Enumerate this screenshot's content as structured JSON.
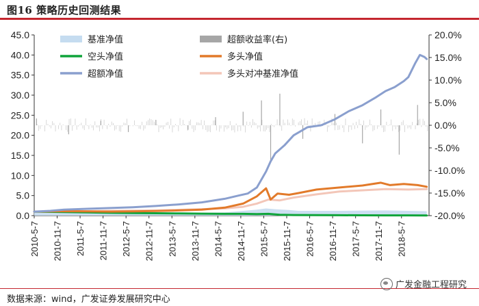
{
  "figure": {
    "title": "图16  策略历史回测结果",
    "source": "数据来源：wind，广发证券发展研究中心",
    "watermark": "广发金融工程研究"
  },
  "chart_data": {
    "type": "line",
    "title": "",
    "left_axis": {
      "ylim": [
        0,
        45
      ],
      "ticks": [
        "0.0",
        "5.0",
        "10.0",
        "15.0",
        "20.0",
        "25.0",
        "30.0",
        "35.0",
        "40.0",
        "45.0"
      ]
    },
    "right_axis": {
      "ylim": [
        -20,
        20
      ],
      "ticks": [
        "-20.0%",
        "-15.0%",
        "-10.0%",
        "-5.0%",
        "0.0%",
        "5.0%",
        "10.0%",
        "15.0%",
        "20.0%"
      ]
    },
    "x_tick_labels": [
      "2010-5-7",
      "2010-11-7",
      "2011-5-7",
      "2011-11-7",
      "2012-5-7",
      "2012-11-7",
      "2013-5-7",
      "2013-11-7",
      "2014-5-7",
      "2014-11-7",
      "2015-5-7",
      "2015-11-7",
      "2016-5-7",
      "2016-11-7",
      "2017-5-7",
      "2017-11-7",
      "2018-5-7"
    ],
    "x_range": [
      2010.35,
      2018.95
    ],
    "legend_placement": "top, two columns",
    "series": [
      {
        "name": "基准净值",
        "axis": "left",
        "style": "area",
        "color": "#c5dcf0",
        "x": [
          2010.35,
          2011.0,
          2011.5,
          2012.0,
          2012.5,
          2013.0,
          2013.5,
          2014.0,
          2014.5,
          2014.9,
          2015.2,
          2015.4,
          2015.6,
          2015.9,
          2016.1,
          2016.5,
          2017.0,
          2017.5,
          2018.0,
          2018.5,
          2018.9
        ],
        "values": [
          1.0,
          1.0,
          0.9,
          0.8,
          0.8,
          0.8,
          0.8,
          0.75,
          0.8,
          1.2,
          1.5,
          1.8,
          1.6,
          1.4,
          1.2,
          1.2,
          1.2,
          1.25,
          1.3,
          1.2,
          1.1
        ]
      },
      {
        "name": "超额收益率(右)",
        "axis": "right",
        "style": "bars",
        "color": "#a6a6a6",
        "x": [
          2010.4,
          2011.1,
          2011.8,
          2012.4,
          2013.0,
          2013.7,
          2014.3,
          2014.9,
          2015.3,
          2015.5,
          2015.7,
          2016.2,
          2016.9,
          2017.5,
          2017.9,
          2018.3,
          2018.7
        ],
        "values": [
          1.5,
          -2.0,
          1.0,
          -1.5,
          1.2,
          -1.0,
          1.8,
          3.0,
          5.5,
          -8.0,
          7.0,
          -3.0,
          2.5,
          -4.0,
          3.5,
          -6.5,
          4.5
        ]
      },
      {
        "name": "空头净值",
        "axis": "left",
        "style": "line",
        "color": "#0fa43a",
        "x": [
          2010.35,
          2011.0,
          2011.5,
          2012.0,
          2012.5,
          2013.0,
          2013.5,
          2014.0,
          2014.5,
          2014.9,
          2015.2,
          2015.45,
          2015.7,
          2016.0,
          2016.5,
          2017.0,
          2017.5,
          2018.0,
          2018.5,
          2018.9
        ],
        "values": [
          1.0,
          0.9,
          0.8,
          0.7,
          0.65,
          0.6,
          0.55,
          0.5,
          0.45,
          0.45,
          0.4,
          0.45,
          0.2,
          0.15,
          0.12,
          0.1,
          0.08,
          0.07,
          0.06,
          0.05
        ]
      },
      {
        "name": "多头净值",
        "axis": "left",
        "style": "line",
        "color": "#e27a2a",
        "x": [
          2010.35,
          2011.0,
          2011.5,
          2012.0,
          2012.5,
          2013.0,
          2013.5,
          2014.0,
          2014.5,
          2014.9,
          2015.2,
          2015.4,
          2015.5,
          2015.65,
          2015.9,
          2016.1,
          2016.5,
          2017.0,
          2017.5,
          2017.9,
          2018.1,
          2018.4,
          2018.7,
          2018.9
        ],
        "values": [
          1.0,
          1.1,
          1.05,
          1.0,
          1.05,
          1.15,
          1.3,
          1.5,
          2.0,
          3.0,
          4.8,
          6.8,
          4.0,
          5.5,
          5.2,
          5.6,
          6.5,
          7.0,
          7.5,
          8.2,
          7.6,
          7.9,
          7.6,
          7.2
        ]
      },
      {
        "name": "超额净值",
        "axis": "left",
        "style": "line",
        "color": "#8a9fce",
        "x": [
          2010.35,
          2010.7,
          2011.0,
          2011.5,
          2012.0,
          2012.5,
          2013.0,
          2013.5,
          2014.0,
          2014.5,
          2014.8,
          2015.0,
          2015.2,
          2015.4,
          2015.5,
          2015.6,
          2015.8,
          2016.0,
          2016.3,
          2016.6,
          2016.9,
          2017.2,
          2017.5,
          2017.8,
          2018.0,
          2018.2,
          2018.4,
          2018.5,
          2018.65,
          2018.75,
          2018.85,
          2018.9
        ],
        "values": [
          1.0,
          1.2,
          1.5,
          1.7,
          1.9,
          2.1,
          2.4,
          2.8,
          3.3,
          4.2,
          5.0,
          5.5,
          7.0,
          11.0,
          13.5,
          15.5,
          17.5,
          20.0,
          22.0,
          22.5,
          24.0,
          26.0,
          27.5,
          29.5,
          31.0,
          32.0,
          33.5,
          34.5,
          38.0,
          40.0,
          39.5,
          39.0
        ]
      },
      {
        "name": "多头对冲基准净值",
        "axis": "left",
        "style": "line",
        "color": "#f3c6b8",
        "x": [
          2010.35,
          2011.0,
          2011.5,
          2012.0,
          2012.5,
          2013.0,
          2013.5,
          2014.0,
          2014.5,
          2014.9,
          2015.2,
          2015.45,
          2015.7,
          2016.0,
          2016.5,
          2017.0,
          2017.5,
          2018.0,
          2018.5,
          2018.9
        ],
        "values": [
          1.0,
          1.1,
          1.1,
          1.2,
          1.25,
          1.3,
          1.45,
          1.6,
          1.8,
          2.2,
          3.0,
          4.0,
          3.8,
          4.5,
          5.3,
          6.0,
          6.3,
          6.6,
          6.5,
          6.6
        ]
      }
    ]
  }
}
